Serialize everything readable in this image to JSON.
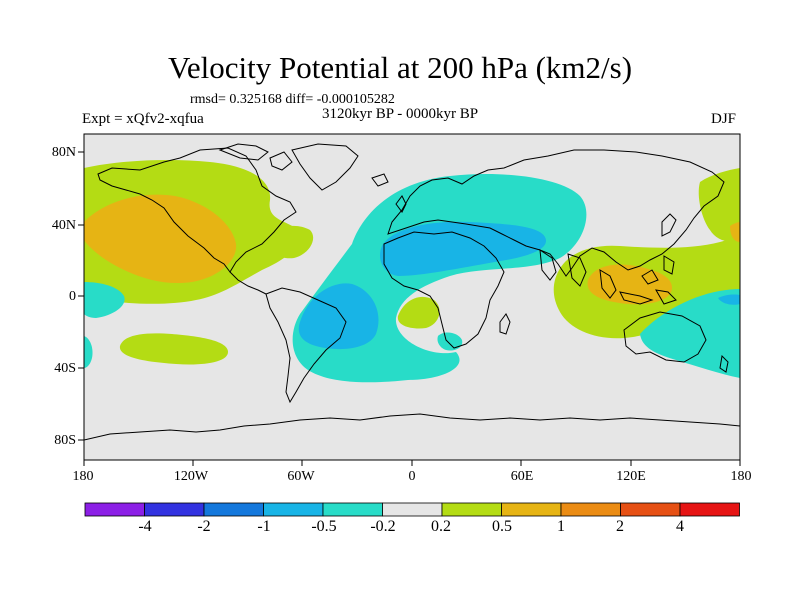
{
  "title": "Velocity Potential at 200 hPa (km2/s)",
  "stats": "rmsd= 0.325168  diff= -0.000105282",
  "experiment": "Expt = xQfv2-xqfua",
  "period": "3120kyr BP - 0000kyr BP",
  "season": "DJF",
  "y_ticks": [
    "80N",
    "40N",
    "0",
    "40S",
    "80S"
  ],
  "x_ticks": [
    "180",
    "120W",
    "60W",
    "0",
    "60E",
    "120E",
    "180"
  ],
  "colorbar": {
    "colors": [
      "#8c1fe6",
      "#3232e0",
      "#1478dc",
      "#18b4e6",
      "#28dcc8",
      "#e6e6e6",
      "#b4dc14",
      "#e6b414",
      "#eb8c14",
      "#e65014",
      "#e61414"
    ],
    "labels": [
      "-4",
      "-2",
      "-1",
      "-0.5",
      "-0.2",
      "0.2",
      "0.5",
      "1",
      "2",
      "4"
    ]
  },
  "fields": {
    "background": "#e6e6e6",
    "coast": "#000000"
  }
}
